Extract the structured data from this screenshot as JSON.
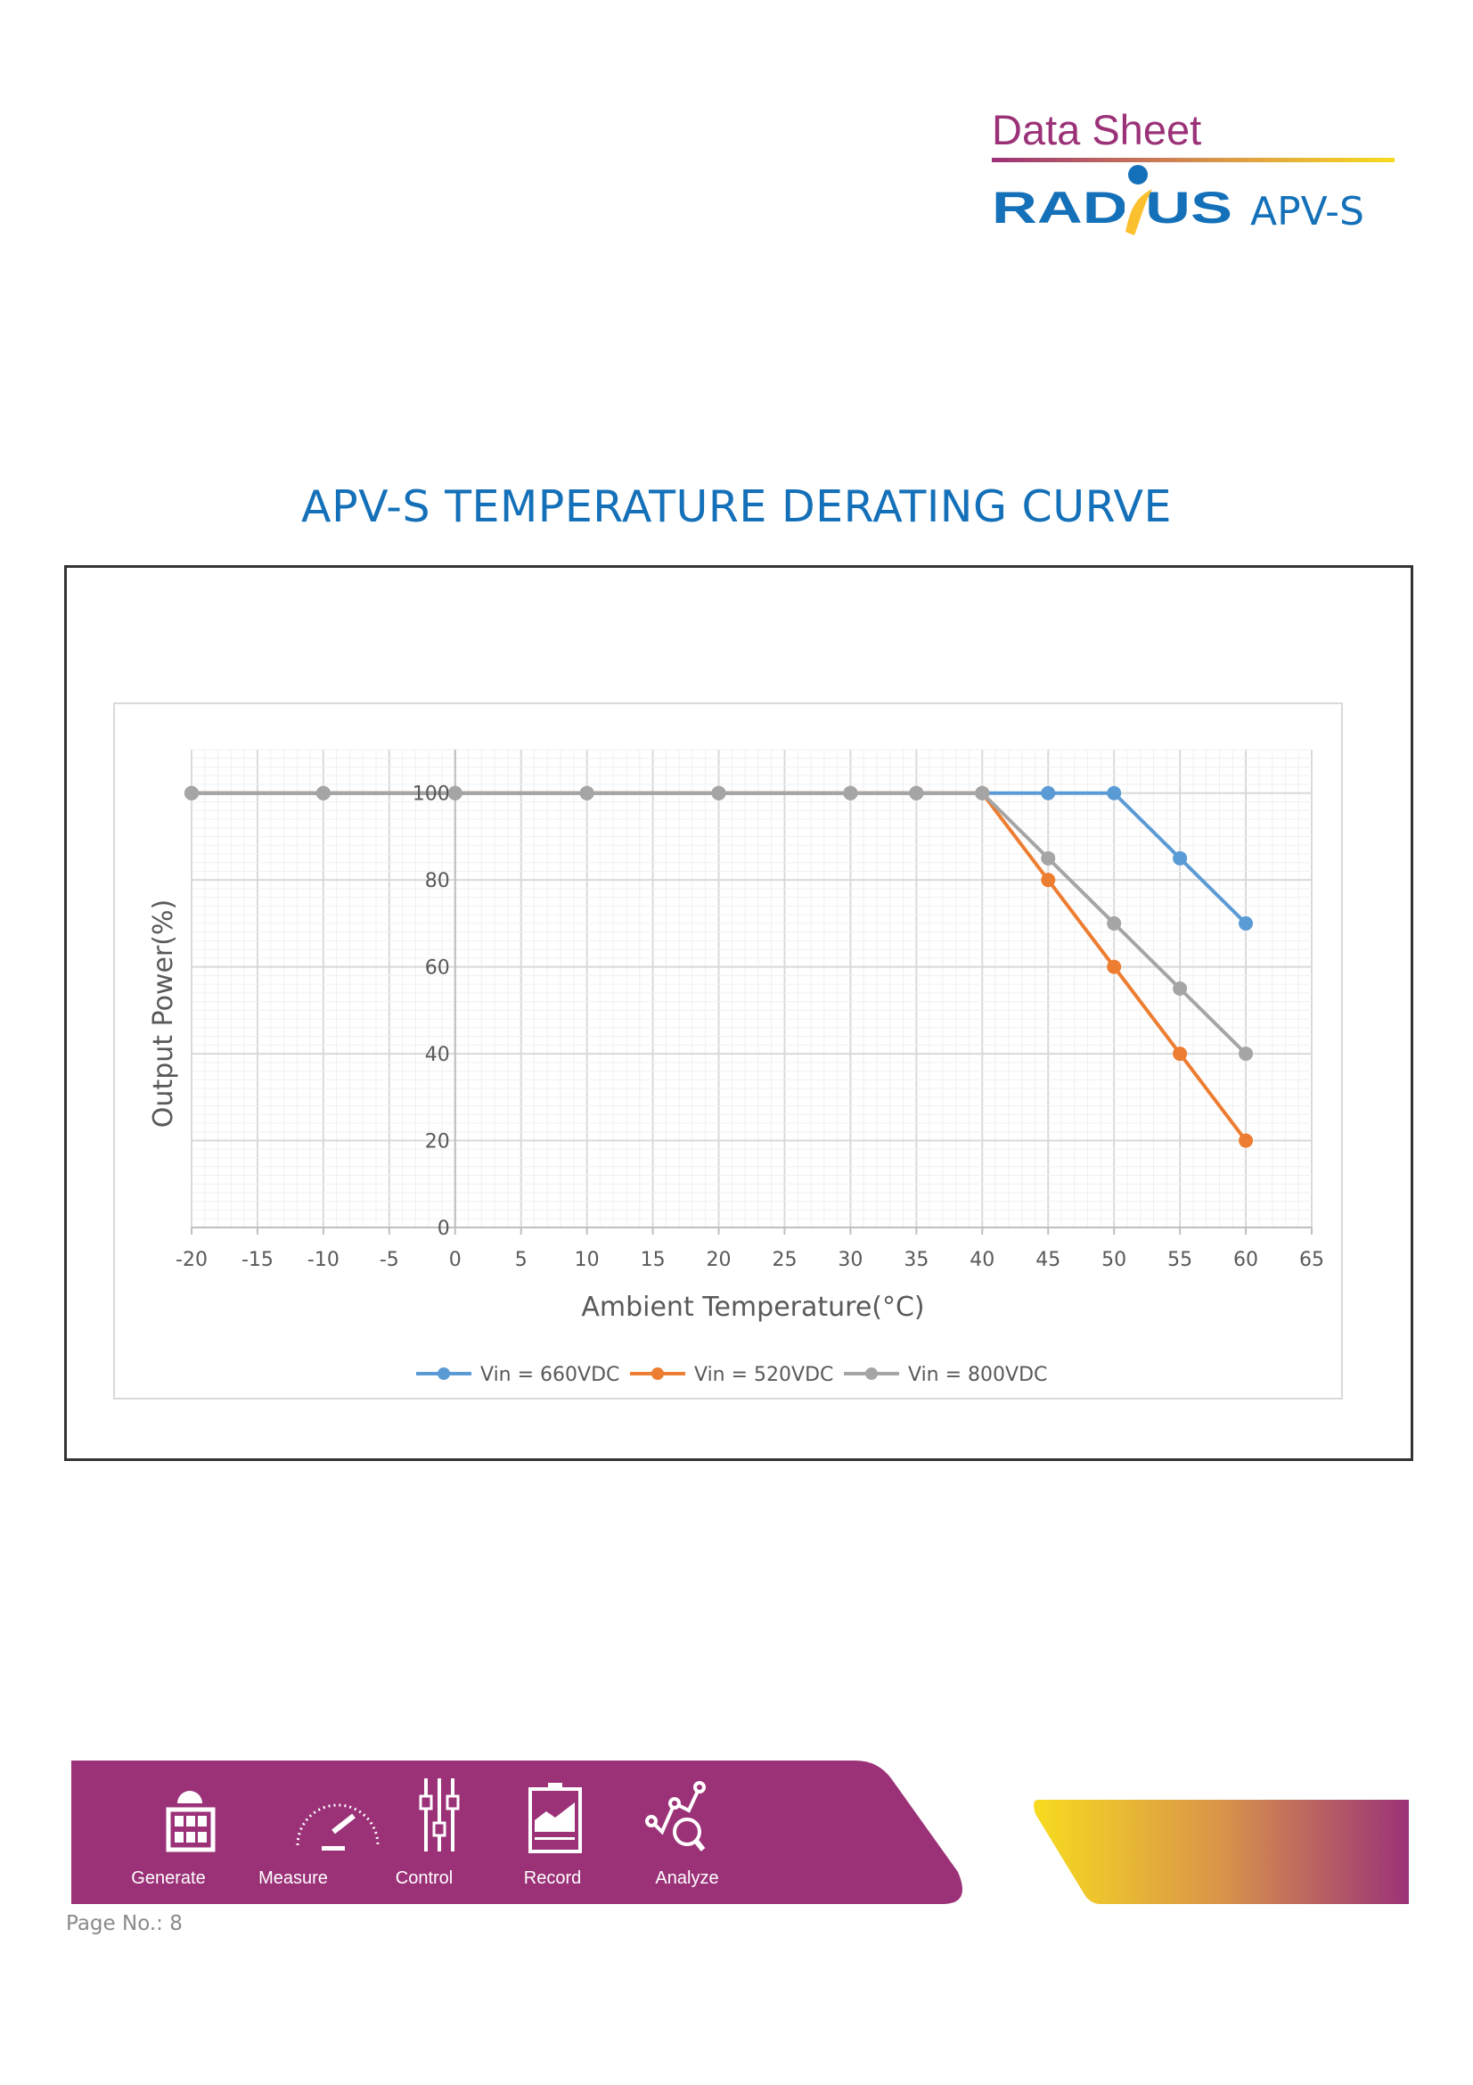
{
  "header": {
    "doc_type": "Data Sheet",
    "brand": "RADIUS",
    "product": "APV-S"
  },
  "page_title": "APV-S TEMPERATURE DERATING CURVE",
  "chart_data": {
    "type": "line",
    "title": "",
    "xlabel": "Ambient Temperature(°C)",
    "ylabel": "Output Power(%)",
    "xlim": [
      -20,
      65
    ],
    "ylim": [
      0,
      110
    ],
    "xticks": [
      -20,
      -15,
      -10,
      -5,
      0,
      5,
      10,
      15,
      20,
      25,
      30,
      35,
      40,
      45,
      50,
      55,
      60,
      65
    ],
    "yticks": [
      0,
      20,
      40,
      60,
      80,
      100
    ],
    "grid": true,
    "legend_position": "bottom",
    "series": [
      {
        "name": "Vin = 660VDC",
        "color": "#5B9BD5",
        "x": [
          -20,
          -10,
          0,
          10,
          20,
          30,
          35,
          40,
          45,
          50,
          55,
          60
        ],
        "y": [
          100,
          100,
          100,
          100,
          100,
          100,
          100,
          100,
          100,
          100,
          85,
          70
        ]
      },
      {
        "name": "Vin = 520VDC",
        "color": "#ED7D31",
        "x": [
          -20,
          -10,
          0,
          10,
          20,
          30,
          35,
          40,
          45,
          50,
          55,
          60
        ],
        "y": [
          100,
          100,
          100,
          100,
          100,
          100,
          100,
          100,
          80,
          60,
          40,
          20
        ]
      },
      {
        "name": "Vin = 800VDC",
        "color": "#A5A5A5",
        "x": [
          -20,
          -10,
          0,
          10,
          20,
          30,
          35,
          40,
          45,
          50,
          55,
          60
        ],
        "y": [
          100,
          100,
          100,
          100,
          100,
          100,
          100,
          100,
          85,
          70,
          55,
          40
        ]
      }
    ]
  },
  "footer": {
    "items": [
      {
        "label": "Generate",
        "icon": "solar-panel-icon"
      },
      {
        "label": "Measure",
        "icon": "gauge-icon"
      },
      {
        "label": "Control",
        "icon": "sliders-icon"
      },
      {
        "label": "Record",
        "icon": "clipboard-chart-icon"
      },
      {
        "label": "Analyze",
        "icon": "analytics-magnifier-icon"
      }
    ],
    "page_no": "Page No.: 8"
  },
  "colors": {
    "purple": "#9B3278",
    "blue": "#1470B8",
    "yellow": "#F7DB1F"
  }
}
